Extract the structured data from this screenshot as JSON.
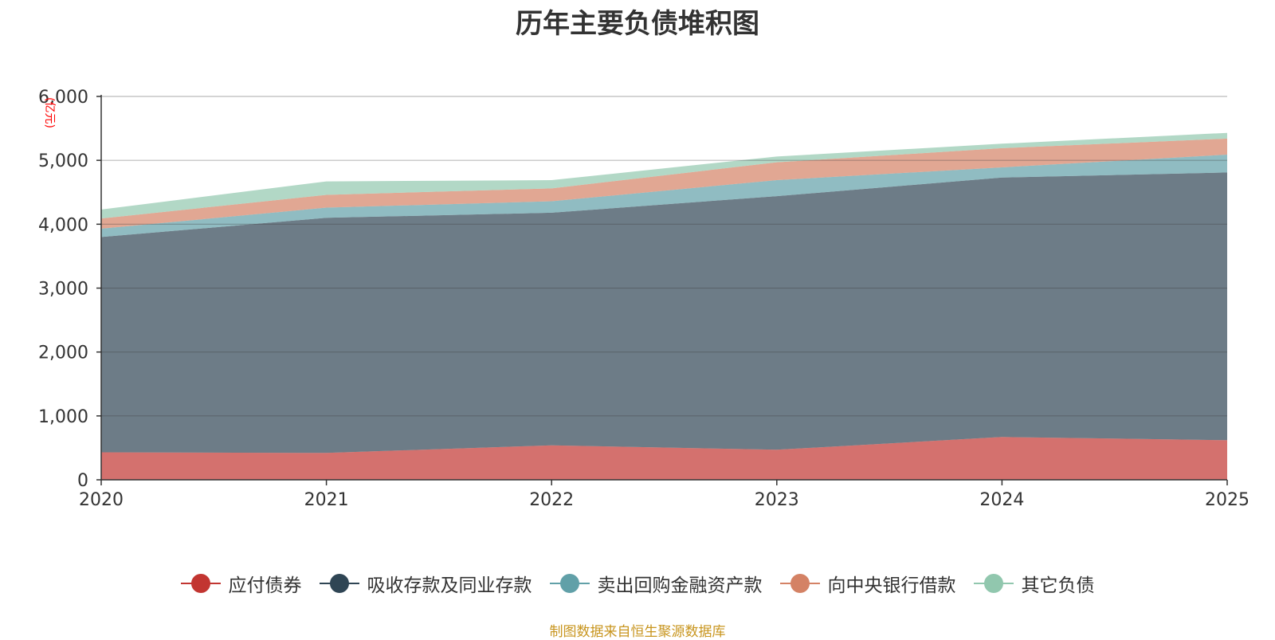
{
  "title": "历年主要负债堆积图",
  "source": "制图数据来自恒生聚源数据库",
  "chart_data": {
    "type": "area",
    "stacked": true,
    "title": "历年主要负债堆积图",
    "xlabel": "",
    "ylabel": "(亿元)",
    "ylim": [
      0,
      6000
    ],
    "yticks": [
      0,
      1000,
      2000,
      3000,
      4000,
      5000,
      6000
    ],
    "ytick_labels": [
      "0",
      "1,000",
      "2,000",
      "3,000",
      "4,000",
      "5,000",
      "6,000"
    ],
    "categories": [
      "2020",
      "2021",
      "2022",
      "2023",
      "2024",
      "2025"
    ],
    "legend_position": "bottom",
    "series": [
      {
        "name": "应付债券",
        "color": "#c23531",
        "values": [
          430,
          420,
          540,
          470,
          670,
          620
        ]
      },
      {
        "name": "吸收存款及同业存款",
        "color": "#2f4554",
        "values": [
          3370,
          3680,
          3640,
          3970,
          4060,
          4190
        ]
      },
      {
        "name": "卖出回购金融资产款",
        "color": "#61a0a8",
        "values": [
          130,
          160,
          180,
          250,
          160,
          280
        ]
      },
      {
        "name": "向中央银行借款",
        "color": "#d48265",
        "values": [
          160,
          200,
          200,
          280,
          300,
          250
        ]
      },
      {
        "name": "其它负债",
        "color": "#91c7ae",
        "values": [
          140,
          210,
          130,
          90,
          70,
          90
        ]
      }
    ]
  }
}
